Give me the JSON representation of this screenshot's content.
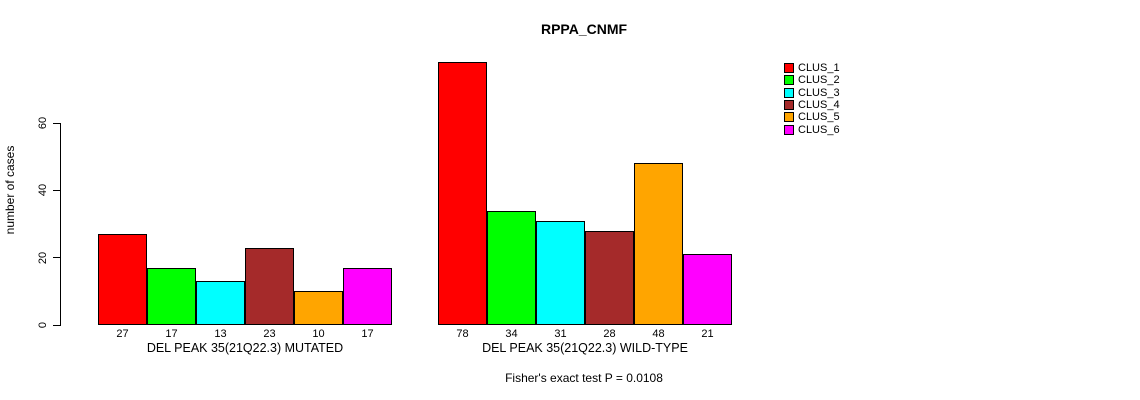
{
  "title": "RPPA_CNMF",
  "ylabel": "number of cases",
  "footer": "Fisher's exact test P = 0.0108",
  "legend": {
    "items": [
      {
        "label": "CLUS_1",
        "color": "#FF0000"
      },
      {
        "label": "CLUS_2",
        "color": "#00FF00"
      },
      {
        "label": "CLUS_3",
        "color": "#00FFFF"
      },
      {
        "label": "CLUS_4",
        "color": "#A52A2A"
      },
      {
        "label": "CLUS_5",
        "color": "#FFA500"
      },
      {
        "label": "CLUS_6",
        "color": "#FF00FF"
      }
    ]
  },
  "chart_data": {
    "type": "bar",
    "title": "RPPA_CNMF",
    "xlabel": "",
    "ylabel": "number of cases",
    "ylim": [
      0,
      60
    ],
    "yticks": [
      0,
      20,
      40,
      60
    ],
    "grid": false,
    "legend_position": "top-right",
    "series_names": [
      "CLUS_1",
      "CLUS_2",
      "CLUS_3",
      "CLUS_4",
      "CLUS_5",
      "CLUS_6"
    ],
    "series_colors": [
      "#FF0000",
      "#00FF00",
      "#00FFFF",
      "#A52A2A",
      "#FFA500",
      "#FF00FF"
    ],
    "groups": [
      {
        "label": "DEL PEAK 35(21Q22.3) MUTATED",
        "values": [
          27,
          17,
          13,
          23,
          10,
          17
        ]
      },
      {
        "label": "DEL PEAK 35(21Q22.3) WILD-TYPE",
        "values": [
          78,
          34,
          31,
          28,
          48,
          21
        ]
      }
    ],
    "annotation": "Fisher's exact test P = 0.0108"
  }
}
